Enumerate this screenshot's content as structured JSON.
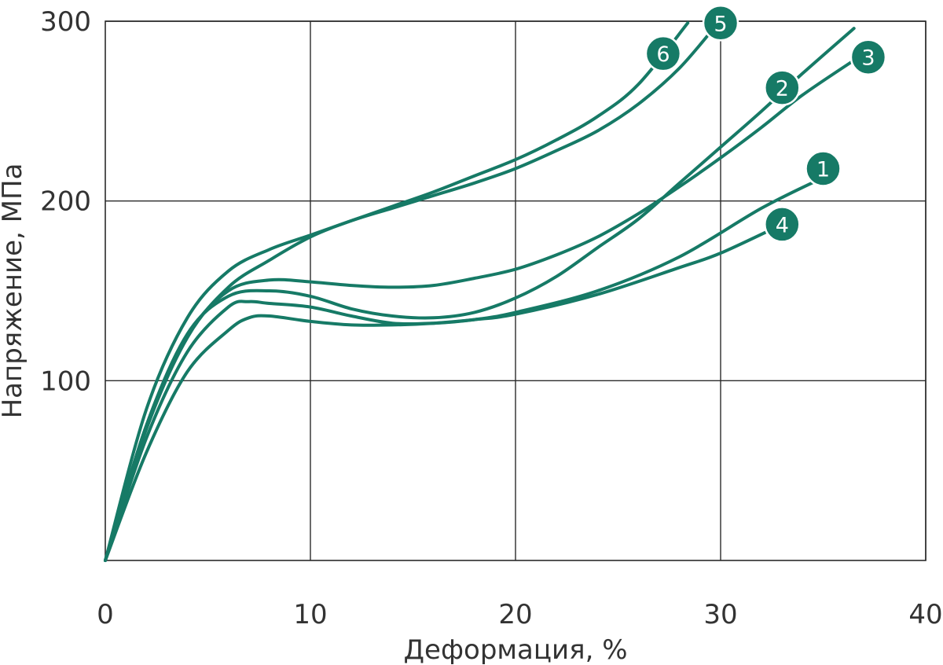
{
  "chart_data": {
    "type": "line",
    "xlabel": "Деформация, %",
    "ylabel": "Напряжение, МПа",
    "xlim": [
      0,
      40
    ],
    "ylim": [
      0,
      300
    ],
    "xticks": [
      "0",
      "10",
      "20",
      "30",
      "40"
    ],
    "yticks": [
      "100",
      "200",
      "300"
    ],
    "grid": true,
    "line_color": "#167a66",
    "series": [
      {
        "name": "1",
        "x": [
          0,
          2,
          4,
          6,
          7,
          8,
          10,
          12,
          14,
          16,
          18,
          20,
          24,
          28,
          32,
          35
        ],
        "y": [
          0,
          68,
          116,
          141,
          144,
          143,
          141,
          136,
          132,
          132,
          134,
          138,
          150,
          169,
          196,
          213
        ]
      },
      {
        "name": "2",
        "x": [
          0,
          2,
          4,
          6,
          8,
          10,
          12,
          14,
          16,
          18,
          20,
          22,
          24,
          26,
          28,
          30,
          32,
          34,
          36.5
        ],
        "y": [
          0,
          75,
          126,
          147,
          150,
          147,
          140,
          136,
          135,
          138,
          146,
          158,
          174,
          190,
          210,
          230,
          250,
          271,
          296
        ]
      },
      {
        "name": "3",
        "x": [
          0,
          2,
          4,
          6,
          8,
          10,
          12,
          14,
          16,
          18,
          20,
          22,
          24,
          26,
          28,
          30,
          32,
          34,
          36.6
        ],
        "y": [
          0,
          75,
          125,
          150,
          156,
          155,
          153,
          152,
          153,
          157,
          162,
          170,
          180,
          193,
          208,
          224,
          241,
          259,
          279
        ]
      },
      {
        "name": "4",
        "x": [
          0,
          2,
          4,
          6,
          7,
          8,
          10,
          12,
          14,
          16,
          18,
          20,
          24,
          28,
          30,
          33
        ],
        "y": [
          0,
          60,
          105,
          128,
          135,
          136,
          133,
          131,
          131,
          132,
          134,
          137,
          148,
          163,
          171,
          187
        ]
      },
      {
        "name": "5",
        "x": [
          0,
          2,
          4,
          6,
          8,
          10,
          12,
          14,
          16,
          18,
          20,
          22,
          24,
          26,
          28,
          29.8
        ],
        "y": [
          0,
          73,
          124,
          152,
          167,
          180,
          189,
          196,
          203,
          210,
          218,
          228,
          239,
          254,
          274,
          298
        ]
      },
      {
        "name": "6",
        "x": [
          0,
          2,
          4,
          6,
          8,
          10,
          12,
          14,
          16,
          18,
          20,
          22,
          24,
          26,
          28.4
        ],
        "y": [
          0,
          84,
          135,
          161,
          173,
          181,
          189,
          197,
          205,
          214,
          223,
          234,
          247,
          265,
          299
        ]
      }
    ],
    "labels": [
      {
        "text": "1",
        "x": 35,
        "y": 218
      },
      {
        "text": "2",
        "x": 33,
        "y": 263
      },
      {
        "text": "3",
        "x": 37.2,
        "y": 280
      },
      {
        "text": "4",
        "x": 33,
        "y": 187
      },
      {
        "text": "5",
        "x": 30,
        "y": 299
      },
      {
        "text": "6",
        "x": 27.2,
        "y": 282
      }
    ]
  }
}
